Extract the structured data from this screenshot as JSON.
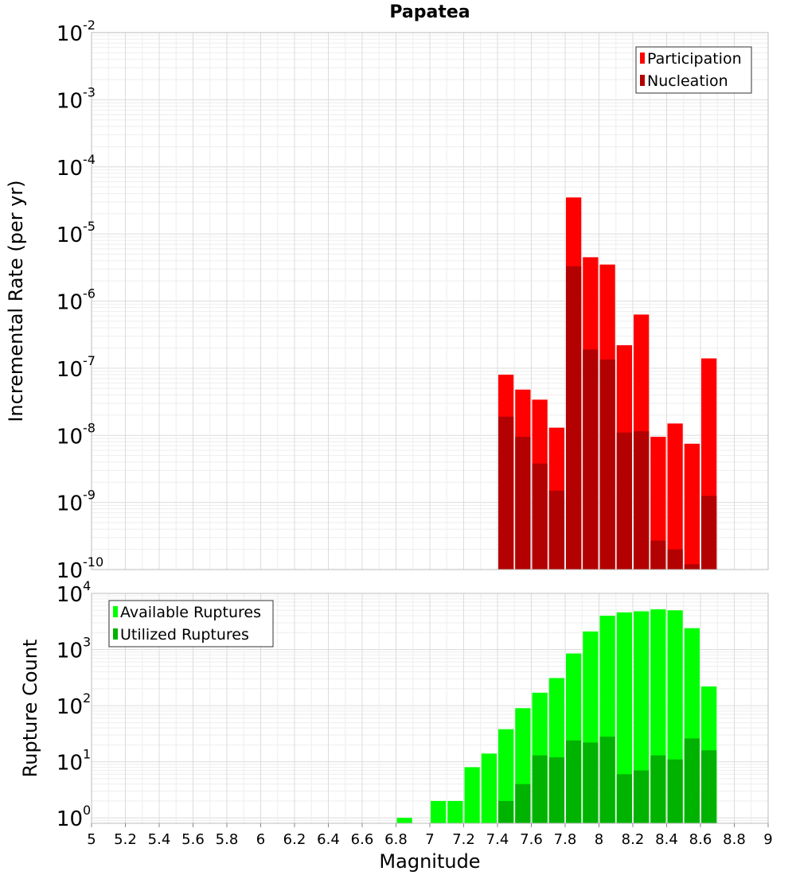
{
  "chart_data": [
    {
      "type": "bar",
      "title": "Papatea",
      "xlabel": "",
      "ylabel": "Incremental Rate (per yr)",
      "yscale": "log",
      "ylim": [
        1e-10,
        0.01
      ],
      "xlim": [
        5,
        9
      ],
      "grid": true,
      "legend_position": "top-right",
      "yticks": [
        {
          "base": "10",
          "exp": "-10",
          "value": 1e-10
        },
        {
          "base": "10",
          "exp": "-9",
          "value": 1e-09
        },
        {
          "base": "10",
          "exp": "-8",
          "value": 1e-08
        },
        {
          "base": "10",
          "exp": "-7",
          "value": 1e-07
        },
        {
          "base": "10",
          "exp": "-6",
          "value": 1e-06
        },
        {
          "base": "10",
          "exp": "-5",
          "value": 1e-05
        },
        {
          "base": "10",
          "exp": "-4",
          "value": 0.0001
        },
        {
          "base": "10",
          "exp": "-3",
          "value": 0.001
        },
        {
          "base": "10",
          "exp": "-2",
          "value": 0.01
        }
      ],
      "x": [
        7.45,
        7.55,
        7.65,
        7.75,
        7.85,
        7.95,
        8.05,
        8.15,
        8.25,
        8.35,
        8.45,
        8.55,
        8.65
      ],
      "series": [
        {
          "name": "Participation",
          "color": "#ff0000",
          "values": [
            8e-08,
            4.8e-08,
            3.4e-08,
            1.3e-08,
            3.5e-05,
            4.5e-06,
            3.5e-06,
            2.2e-07,
            6.3e-07,
            9.5e-09,
            1.5e-08,
            7.5e-09,
            1.4e-07
          ]
        },
        {
          "name": "Nucleation",
          "color": "#b30000",
          "values": [
            1.9e-08,
            9.5e-09,
            3.8e-09,
            1.5e-09,
            3.3e-06,
            1.9e-07,
            1.35e-07,
            1.1e-08,
            1.15e-08,
            2.7e-10,
            2e-10,
            1.2e-10,
            1.25e-09
          ]
        }
      ]
    },
    {
      "type": "bar",
      "title": "",
      "xlabel": "Magnitude",
      "ylabel": "Rupture Count",
      "yscale": "log",
      "ylim": [
        0.8,
        10000
      ],
      "xlim": [
        5,
        9
      ],
      "grid": true,
      "legend_position": "top-left",
      "xticks": [
        "5",
        "5.2",
        "5.4",
        "5.6",
        "5.8",
        "6",
        "6.2",
        "6.4",
        "6.6",
        "6.8",
        "7",
        "7.2",
        "7.4",
        "7.6",
        "7.8",
        "8",
        "8.2",
        "8.4",
        "8.6",
        "8.8",
        "9"
      ],
      "yticks": [
        {
          "base": "10",
          "exp": "0",
          "value": 1
        },
        {
          "base": "10",
          "exp": "1",
          "value": 10
        },
        {
          "base": "10",
          "exp": "2",
          "value": 100
        },
        {
          "base": "10",
          "exp": "3",
          "value": 1000
        },
        {
          "base": "10",
          "exp": "4",
          "value": 10000
        }
      ],
      "x": [
        6.85,
        6.95,
        7.05,
        7.15,
        7.25,
        7.35,
        7.45,
        7.55,
        7.65,
        7.75,
        7.85,
        7.95,
        8.05,
        8.15,
        8.25,
        8.35,
        8.45,
        8.55,
        8.65
      ],
      "series": [
        {
          "name": "Available Ruptures",
          "color": "#00ff00",
          "values": [
            1,
            0,
            2,
            2,
            8,
            14,
            38,
            90,
            170,
            310,
            850,
            2100,
            4000,
            4600,
            4800,
            5200,
            5000,
            2400,
            220
          ]
        },
        {
          "name": "Utilized Ruptures",
          "color": "#00b300",
          "values": [
            0,
            0,
            0,
            0,
            0,
            0,
            2,
            4,
            13,
            12,
            24,
            22,
            28,
            6,
            7,
            13,
            11,
            26,
            16
          ]
        }
      ]
    }
  ]
}
